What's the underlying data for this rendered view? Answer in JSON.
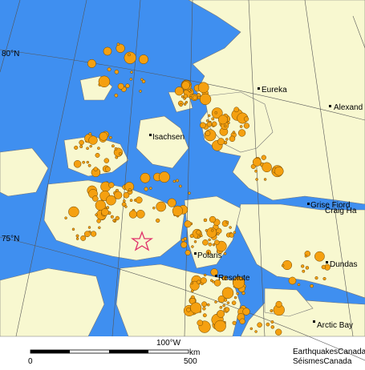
{
  "map": {
    "graticule": {
      "latitudes": [
        "80°N",
        "75°N"
      ],
      "longitudes": [
        "100°W"
      ]
    },
    "places": [
      "Eureka",
      "Alexand",
      "Isachsen",
      "Grise Fiord",
      "Craig Ha",
      "Polaris",
      "Resolute",
      "Dundas",
      "Arctic Bay"
    ],
    "scale": {
      "ticks": [
        "0",
        "500"
      ],
      "unit": "km"
    },
    "credits": [
      "EarthquakesCanada",
      "SéismesCanada"
    ]
  }
}
